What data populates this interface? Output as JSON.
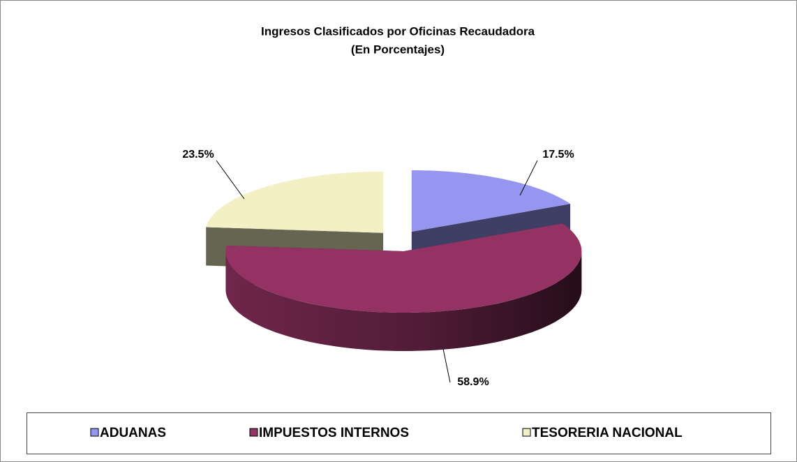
{
  "chart_data": {
    "type": "pie3d",
    "title": "Ingresos Clasificados por Oficinas Recaudadora",
    "subtitle": "(En Porcentajes)",
    "categories": [
      "ADUANAS",
      "IMPUESTOS INTERNOS",
      "TESORERIA NACIONAL"
    ],
    "values": [
      17.5,
      58.9,
      23.5
    ],
    "value_labels": [
      "17.5%",
      "58.9%",
      "23.5%"
    ],
    "colors": [
      "#9696f0",
      "#943264",
      "#f2f0c4"
    ],
    "legend": "bottom"
  }
}
